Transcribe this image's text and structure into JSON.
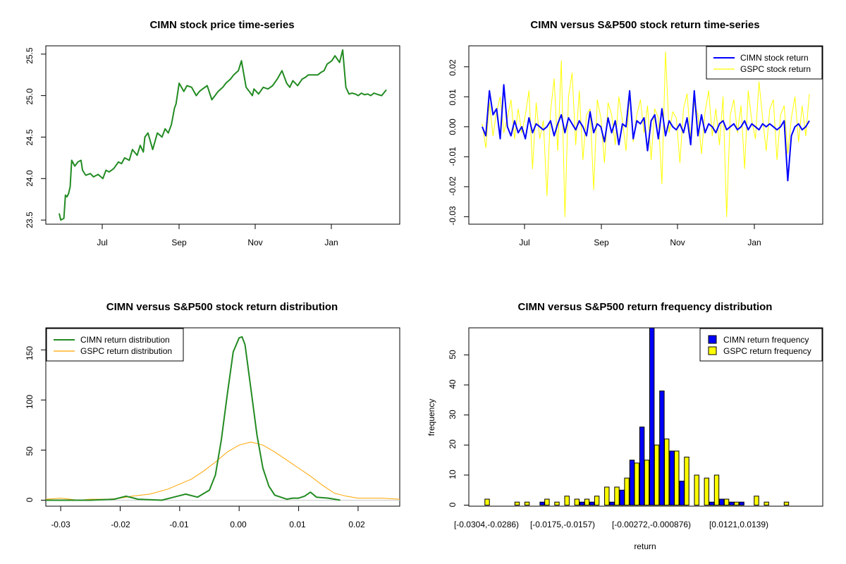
{
  "chart_data": [
    {
      "type": "line",
      "title": "CIMN stock price time-series",
      "xlabel": "",
      "ylabel": "",
      "x_ticks": [
        "Jul",
        "Sep",
        "Nov",
        "Jan"
      ],
      "y_ticks": [
        "23.5",
        "24.0",
        "24.5",
        "25.0",
        "25.5"
      ],
      "ylim": [
        23.45,
        25.6
      ],
      "color": "#228B22",
      "x": [
        0,
        1,
        3,
        4,
        5,
        6,
        7,
        8,
        10,
        12,
        14,
        15,
        17,
        20,
        22,
        25,
        28,
        30,
        32,
        35,
        38,
        40,
        42,
        45,
        47,
        50,
        52,
        54,
        55,
        57,
        60,
        63,
        66,
        68,
        70,
        72,
        74,
        75,
        77,
        80,
        82,
        85,
        88,
        90,
        92,
        95,
        98,
        100,
        102,
        105,
        107,
        110,
        112,
        115,
        117,
        120,
        122,
        124,
        125,
        128,
        131,
        134,
        137,
        140,
        143,
        146,
        148,
        150,
        153,
        156,
        158,
        160,
        163,
        166,
        168,
        170,
        172,
        175,
        177,
        180,
        182,
        184,
        186,
        188,
        190,
        192,
        194,
        196,
        198,
        200,
        202,
        205,
        207,
        210
      ],
      "values": [
        23.58,
        23.5,
        23.52,
        23.8,
        23.78,
        23.82,
        23.9,
        24.22,
        24.15,
        24.2,
        24.22,
        24.1,
        24.04,
        24.06,
        24.02,
        24.05,
        24.0,
        24.1,
        24.08,
        24.12,
        24.2,
        24.18,
        24.25,
        24.22,
        24.35,
        24.28,
        24.4,
        24.32,
        24.5,
        24.55,
        24.35,
        24.55,
        24.5,
        24.6,
        24.55,
        24.65,
        24.85,
        24.9,
        25.15,
        25.05,
        25.12,
        25.1,
        25.0,
        25.05,
        25.08,
        25.12,
        24.95,
        25.0,
        25.05,
        25.1,
        25.15,
        25.2,
        25.25,
        25.3,
        25.42,
        25.1,
        25.05,
        25.0,
        25.08,
        25.02,
        25.1,
        25.08,
        25.12,
        25.2,
        25.3,
        25.15,
        25.1,
        25.18,
        25.12,
        25.2,
        25.22,
        25.25,
        25.25,
        25.25,
        25.28,
        25.3,
        25.38,
        25.42,
        25.48,
        25.4,
        25.55,
        25.1,
        25.02,
        25.03,
        25.02,
        25.0,
        25.03,
        25.01,
        25.02,
        25.0,
        25.03,
        25.01,
        25.0,
        25.07
      ]
    },
    {
      "type": "line",
      "title": "CIMN versus S&P500 stock return time-series",
      "x_ticks": [
        "Jul",
        "Sep",
        "Nov",
        "Jan"
      ],
      "y_ticks": [
        "-0.03",
        "-0.02",
        "-0.01",
        "0.00",
        "0.01",
        "0.02"
      ],
      "ylim": [
        -0.0325,
        0.027
      ],
      "legend_position": "top-right",
      "series": [
        {
          "name": "CIMN stock return",
          "color": "#0000FF",
          "values": [
            0.0,
            -0.003,
            0.012,
            0.004,
            0.006,
            -0.004,
            0.014,
            0.0,
            -0.003,
            0.002,
            -0.002,
            0.0,
            -0.004,
            0.003,
            -0.002,
            0.001,
            0.0,
            -0.001,
            0.0,
            0.002,
            -0.003,
            0.001,
            0.004,
            -0.002,
            0.003,
            0.001,
            -0.001,
            0.002,
            0.0,
            -0.003,
            0.005,
            -0.002,
            0.001,
            0.0,
            -0.005,
            0.003,
            -0.002,
            0.002,
            -0.006,
            0.001,
            0.0,
            0.012,
            -0.004,
            0.002,
            0.001,
            0.003,
            -0.008,
            0.002,
            0.004,
            -0.004,
            0.006,
            -0.003,
            0.002,
            0.0,
            -0.001,
            0.001,
            -0.002,
            0.003,
            -0.006,
            0.012,
            -0.003,
            0.004,
            -0.002,
            0.001,
            0.0,
            -0.002,
            0.001,
            0.002,
            -0.001,
            0.0,
            0.001,
            -0.001,
            0.0,
            0.002,
            -0.001,
            0.001,
            0.0,
            -0.001,
            0.001,
            0.0,
            0.001,
            0.0,
            -0.001,
            0.0,
            0.002,
            -0.018,
            -0.003,
            0.0,
            0.001,
            -0.001,
            0.0,
            0.002
          ]
        },
        {
          "name": "GSPC stock return",
          "color": "#FFFF00",
          "values": [
            0.001,
            -0.007,
            0.008,
            -0.003,
            0.005,
            0.01,
            -0.002,
            0.003,
            0.009,
            -0.004,
            0.006,
            -0.002,
            0.004,
            0.012,
            -0.014,
            0.008,
            -0.004,
            0.002,
            -0.023,
            0.005,
            0.016,
            -0.008,
            0.022,
            -0.03,
            0.01,
            0.018,
            -0.006,
            0.012,
            -0.011,
            0.004,
            0.006,
            -0.021,
            0.009,
            0.003,
            -0.012,
            0.008,
            0.004,
            -0.006,
            0.01,
            0.002,
            -0.008,
            0.011,
            -0.005,
            0.004,
            0.009,
            -0.002,
            0.007,
            -0.011,
            0.006,
            0.003,
            -0.019,
            0.025,
            -0.002,
            0.005,
            0.003,
            -0.012,
            0.006,
            0.011,
            -0.004,
            0.008,
            0.004,
            -0.009,
            0.005,
            0.012,
            -0.003,
            0.006,
            -0.006,
            0.01,
            -0.03,
            0.004,
            0.009,
            -0.002,
            0.007,
            -0.014,
            0.012,
            0.002,
            -0.004,
            0.015,
            0.003,
            -0.008,
            0.006,
            0.009,
            -0.011,
            0.004,
            0.007,
            -0.009,
            0.003,
            0.01,
            -0.005,
            0.007,
            -0.003,
            0.011
          ]
        }
      ]
    },
    {
      "type": "line",
      "title": "CIMN versus S&P500 stock return distribution",
      "x_ticks": [
        "-0.03",
        "-0.02",
        "-0.01",
        "0.00",
        "0.01",
        "0.02"
      ],
      "y_ticks": [
        "0",
        "50",
        "100",
        "150"
      ],
      "xlim": [
        -0.0325,
        0.027
      ],
      "ylim": [
        -6,
        172
      ],
      "legend_position": "top-left",
      "series": [
        {
          "name": "CIMN return distribution",
          "color": "#228B22",
          "x": [
            -0.0325,
            -0.025,
            -0.021,
            -0.019,
            -0.017,
            -0.013,
            -0.011,
            -0.009,
            -0.007,
            -0.005,
            -0.004,
            -0.003,
            -0.002,
            -0.001,
            0.0,
            0.0005,
            0.001,
            0.002,
            0.003,
            0.004,
            0.005,
            0.006,
            0.007,
            0.008,
            0.009,
            0.01,
            0.011,
            0.012,
            0.013,
            0.015,
            0.017
          ],
          "values": [
            0,
            0,
            1,
            4,
            1,
            0,
            3,
            6,
            3,
            10,
            25,
            60,
            105,
            148,
            162,
            163,
            155,
            110,
            65,
            32,
            14,
            5,
            3,
            1,
            2,
            2,
            4,
            8,
            3,
            2,
            0
          ]
        },
        {
          "name": "GSPC return distribution",
          "color": "#FFA500",
          "x": [
            -0.0325,
            -0.03,
            -0.027,
            -0.025,
            -0.022,
            -0.02,
            -0.018,
            -0.015,
            -0.012,
            -0.01,
            -0.008,
            -0.006,
            -0.004,
            -0.002,
            0.0,
            0.002,
            0.004,
            0.006,
            0.008,
            0.01,
            0.012,
            0.014,
            0.016,
            0.018,
            0.02,
            0.022,
            0.024,
            0.027
          ],
          "values": [
            1,
            2,
            0,
            1,
            1,
            2,
            4,
            6,
            11,
            16,
            21,
            29,
            38,
            48,
            55,
            58,
            55,
            48,
            40,
            32,
            24,
            15,
            7,
            4,
            2,
            2,
            2,
            1
          ]
        }
      ]
    },
    {
      "type": "bar",
      "title": "CIMN versus S&P500 return frequency distribution",
      "xlabel": "return",
      "ylabel": "frequency",
      "ylim": [
        0,
        59
      ],
      "y_ticks": [
        "0",
        "10",
        "20",
        "30",
        "40",
        "50"
      ],
      "x_tick_labels": [
        "[-0.0304,-0.0286)",
        "[-0.0175,-0.0157)",
        "[-0.00272,-0.000876)",
        "[0.0121,0.0139)"
      ],
      "legend_position": "top-right",
      "categories": [
        "b1",
        "b2",
        "b3",
        "b4",
        "b5",
        "b6",
        "b7",
        "b8",
        "b9",
        "b10",
        "b11",
        "b12",
        "b13",
        "b14",
        "b15",
        "b16",
        "b17",
        "b18",
        "b19",
        "b20",
        "b21",
        "b22",
        "b23",
        "b24",
        "b25",
        "b26",
        "b27",
        "b28",
        "b29",
        "b30",
        "b31",
        "b32",
        "b33"
      ],
      "series": [
        {
          "name": "CIMN return frequency",
          "color": "#0000FF",
          "values": [
            0,
            0,
            0,
            0,
            0,
            0,
            1,
            0,
            0,
            0,
            1,
            1,
            0,
            1,
            5,
            15,
            26,
            59,
            38,
            18,
            8,
            0,
            0,
            1,
            2,
            1,
            1,
            0,
            0,
            0,
            0,
            0,
            0
          ]
        },
        {
          "name": "GSPC return frequency",
          "color": "#FFFF00",
          "values": [
            2,
            0,
            0,
            1,
            1,
            0,
            2,
            1,
            3,
            2,
            2,
            3,
            6,
            6,
            9,
            14,
            15,
            20,
            22,
            18,
            16,
            10,
            9,
            10,
            2,
            1,
            0,
            3,
            1,
            0,
            1,
            0,
            0
          ]
        }
      ]
    }
  ]
}
